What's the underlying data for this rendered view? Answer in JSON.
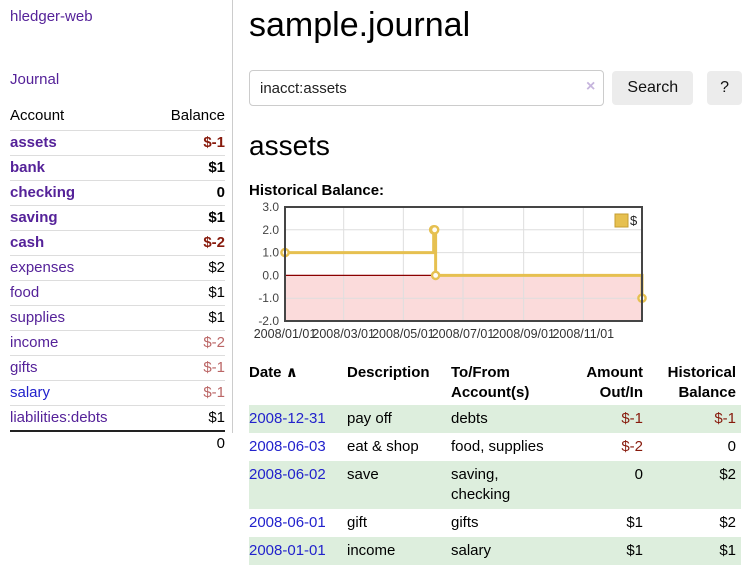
{
  "header": {
    "title": "sample.journal"
  },
  "search": {
    "value": "inacct:assets",
    "clear_icon": "×",
    "button_label": "Search",
    "help_label": "?"
  },
  "main": {
    "account_heading": "assets",
    "chart_label": "Historical Balance:"
  },
  "sidebar": {
    "app_title": "hledger-web",
    "nav": {
      "journal_label": "Journal"
    },
    "accounts_table": {
      "headers": {
        "account": "Account",
        "balance": "Balance"
      },
      "rows": [
        {
          "name": "assets",
          "depth": 1,
          "bold": true,
          "balance": "$-1",
          "balance_style": "neg-strong"
        },
        {
          "name": "bank",
          "depth": 2,
          "bold": true,
          "balance": "$1",
          "balance_style": "pos"
        },
        {
          "name": "checking",
          "depth": 3,
          "bold": true,
          "balance": "0",
          "balance_style": "pos"
        },
        {
          "name": "saving",
          "depth": 3,
          "bold": true,
          "balance": "$1",
          "balance_style": "pos"
        },
        {
          "name": "cash",
          "depth": 2,
          "bold": true,
          "balance": "$-2",
          "balance_style": "neg-strong"
        },
        {
          "name": "expenses",
          "depth": 1,
          "bold": false,
          "balance": "$2",
          "balance_style": "pos"
        },
        {
          "name": "food",
          "depth": 2,
          "bold": false,
          "balance": "$1",
          "balance_style": "pos"
        },
        {
          "name": "supplies",
          "depth": 2,
          "bold": false,
          "balance": "$1",
          "balance_style": "pos"
        },
        {
          "name": "income",
          "depth": 1,
          "bold": false,
          "balance": "$-2",
          "balance_style": "neg-soft"
        },
        {
          "name": "gifts",
          "depth": 2,
          "bold": false,
          "balance": "$-1",
          "balance_style": "neg-soft"
        },
        {
          "name": "salary",
          "depth": 2,
          "bold": false,
          "balance": "$-1",
          "balance_style": "neg-soft",
          "link_color": "blue"
        },
        {
          "name": "liabilities:debts",
          "depth": 1,
          "bold": false,
          "balance": "$1",
          "balance_style": "pos"
        }
      ],
      "total": "0"
    }
  },
  "chart_data": {
    "type": "line",
    "step": true,
    "title": "Historical Balance:",
    "series": [
      {
        "name": "$",
        "points": [
          {
            "date": "2008-01-01",
            "value": 1
          },
          {
            "date": "2008-06-01",
            "value": 2
          },
          {
            "date": "2008-06-02",
            "value": 2
          },
          {
            "date": "2008-06-03",
            "value": 0
          },
          {
            "date": "2008-12-31",
            "value": -1
          }
        ]
      }
    ],
    "x_range": [
      "2008-01-01",
      "2008-12-31"
    ],
    "ylim": [
      -2,
      3
    ],
    "y_ticks": [
      {
        "v": 3,
        "label": "3.0"
      },
      {
        "v": 2,
        "label": "2.0"
      },
      {
        "v": 1,
        "label": "1.0"
      },
      {
        "v": 0,
        "label": "0.0"
      },
      {
        "v": -1,
        "label": "-1.0"
      },
      {
        "v": -2,
        "label": "-2.0"
      }
    ],
    "x_ticks": [
      {
        "date": "2008-01-01",
        "label": "2008/01/01"
      },
      {
        "date": "2008-03-01",
        "label": "2008/03/01"
      },
      {
        "date": "2008-05-01",
        "label": "2008/05/01"
      },
      {
        "date": "2008-07-01",
        "label": "2008/07/01"
      },
      {
        "date": "2008-09-01",
        "label": "2008/09/01"
      },
      {
        "date": "2008-11-01",
        "label": "2008/11/01"
      }
    ],
    "legend": {
      "label": "$",
      "position": "top-right"
    },
    "grid": true,
    "negative_region_shaded": true,
    "zero_line": true
  },
  "transactions": {
    "headers": {
      "date": "Date",
      "sort_icon": "∧",
      "description": "Description",
      "tofrom": "To/From Account(s)",
      "amount": "Amount Out/In",
      "historical": "Historical Balance"
    },
    "rows": [
      {
        "date": "2008-12-31",
        "description": "pay off",
        "accounts": "debts",
        "amount": "$-1",
        "amount_neg": true,
        "historical": "$-1",
        "historical_neg": true
      },
      {
        "date": "2008-06-03",
        "description": "eat & shop",
        "accounts": "food, supplies",
        "amount": "$-2",
        "amount_neg": true,
        "historical": "0",
        "historical_neg": false
      },
      {
        "date": "2008-06-02",
        "description": "save",
        "accounts": "saving, checking",
        "amount": "0",
        "amount_neg": false,
        "historical": "$2",
        "historical_neg": false
      },
      {
        "date": "2008-06-01",
        "description": "gift",
        "accounts": "gifts",
        "amount": "$1",
        "amount_neg": false,
        "historical": "$2",
        "historical_neg": false
      },
      {
        "date": "2008-01-01",
        "description": "income",
        "accounts": "salary",
        "amount": "$1",
        "amount_neg": false,
        "historical": "$1",
        "historical_neg": false
      }
    ]
  },
  "colors": {
    "purple": "#552299",
    "blue": "#2222cc",
    "neg": "#871a0c",
    "neg-soft": "#bb6666",
    "row-green": "#ddeedd",
    "gold": "#e6c050",
    "gold-border": "#c59e2f",
    "marker-fill": "#fffdf5",
    "pink": "#fbdbdb",
    "zero-line": "#8b0000",
    "grid": "#dedede",
    "chart-border": "#454545",
    "tick-label": "#444444"
  }
}
